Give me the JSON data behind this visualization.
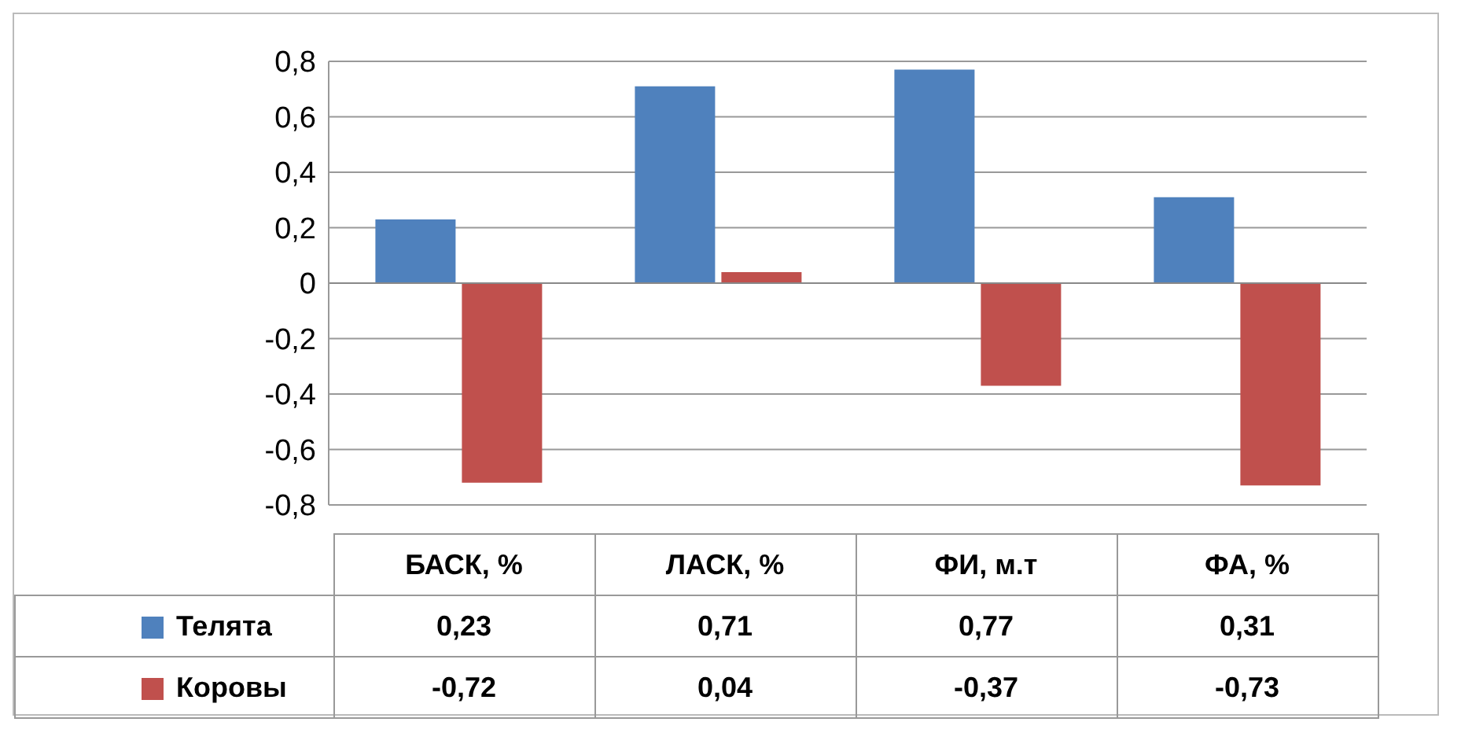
{
  "chart_data": {
    "type": "bar",
    "categories": [
      "БАСК, %",
      "ЛАСК, %",
      "ФИ, м.т",
      "ФА, %"
    ],
    "series": [
      {
        "name": "Телята",
        "color": "#4f81bd",
        "values": [
          0.23,
          0.71,
          0.77,
          0.31
        ],
        "value_labels": [
          "0,23",
          "0,71",
          "0,77",
          "0,31"
        ]
      },
      {
        "name": "Коровы",
        "color": "#c0504d",
        "values": [
          -0.72,
          0.04,
          -0.37,
          -0.73
        ],
        "value_labels": [
          "-0,72",
          "0,04",
          "-0,37",
          "-0,73"
        ]
      }
    ],
    "ylim": [
      -0.8,
      0.8
    ],
    "yticks": [
      {
        "value": -0.8,
        "label": "-0,8"
      },
      {
        "value": -0.6,
        "label": "-0,6"
      },
      {
        "value": -0.4,
        "label": "-0,4"
      },
      {
        "value": -0.2,
        "label": "-0,2"
      },
      {
        "value": 0,
        "label": "0"
      },
      {
        "value": 0.2,
        "label": "0,2"
      },
      {
        "value": 0.4,
        "label": "0,4"
      },
      {
        "value": 0.6,
        "label": "0,6"
      },
      {
        "value": 0.8,
        "label": "0,8"
      }
    ],
    "grid": "y",
    "legend": "bottom left"
  }
}
